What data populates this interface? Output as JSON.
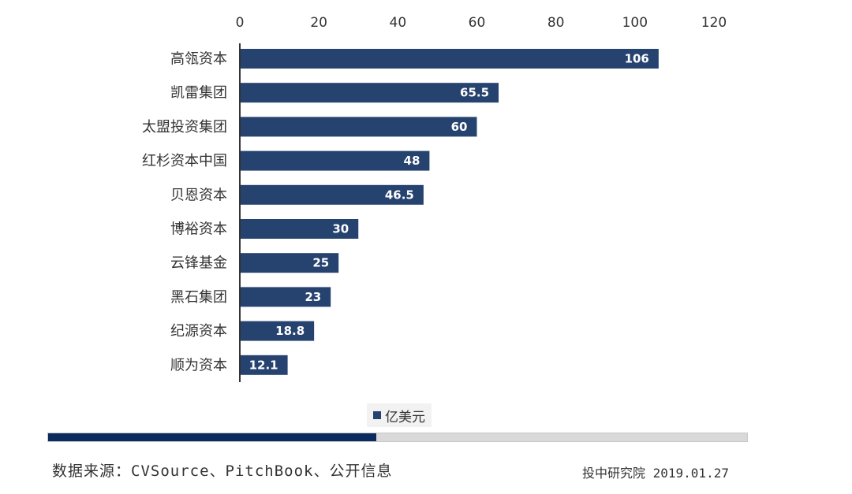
{
  "chart_data": {
    "type": "bar",
    "orientation": "horizontal",
    "categories": [
      "高瓴资本",
      "凯雷集团",
      "太盟投资集团",
      "红杉资本中国",
      "贝恩资本",
      "博裕资本",
      "云锋基金",
      "黑石集团",
      "纪源资本",
      "顺为资本"
    ],
    "series": [
      {
        "name": "亿美元",
        "values": [
          106,
          65.5,
          60,
          48,
          46.5,
          30,
          25,
          23,
          18.8,
          12.1
        ],
        "color": "#26426f"
      }
    ],
    "value_labels": [
      "106",
      "65.5",
      "60",
      "48",
      "46.5",
      "30",
      "25",
      "23",
      "18.8",
      "12.1"
    ],
    "xlim": [
      0,
      120
    ],
    "x_ticks": [
      0,
      20,
      40,
      60,
      80,
      100,
      120
    ],
    "x_axis_position": "top",
    "grid": false,
    "legend_position": "bottom"
  },
  "legend": {
    "label": "亿美元",
    "color": "#26426f"
  },
  "scrollbar": {
    "fill_fraction": 0.47,
    "fill_color": "#0b2b5e",
    "track_color": "#d9d9d9"
  },
  "footer": {
    "source": "数据来源：CVSource、PitchBook、公开信息",
    "credit": "投中研究院 2019.01.27"
  }
}
